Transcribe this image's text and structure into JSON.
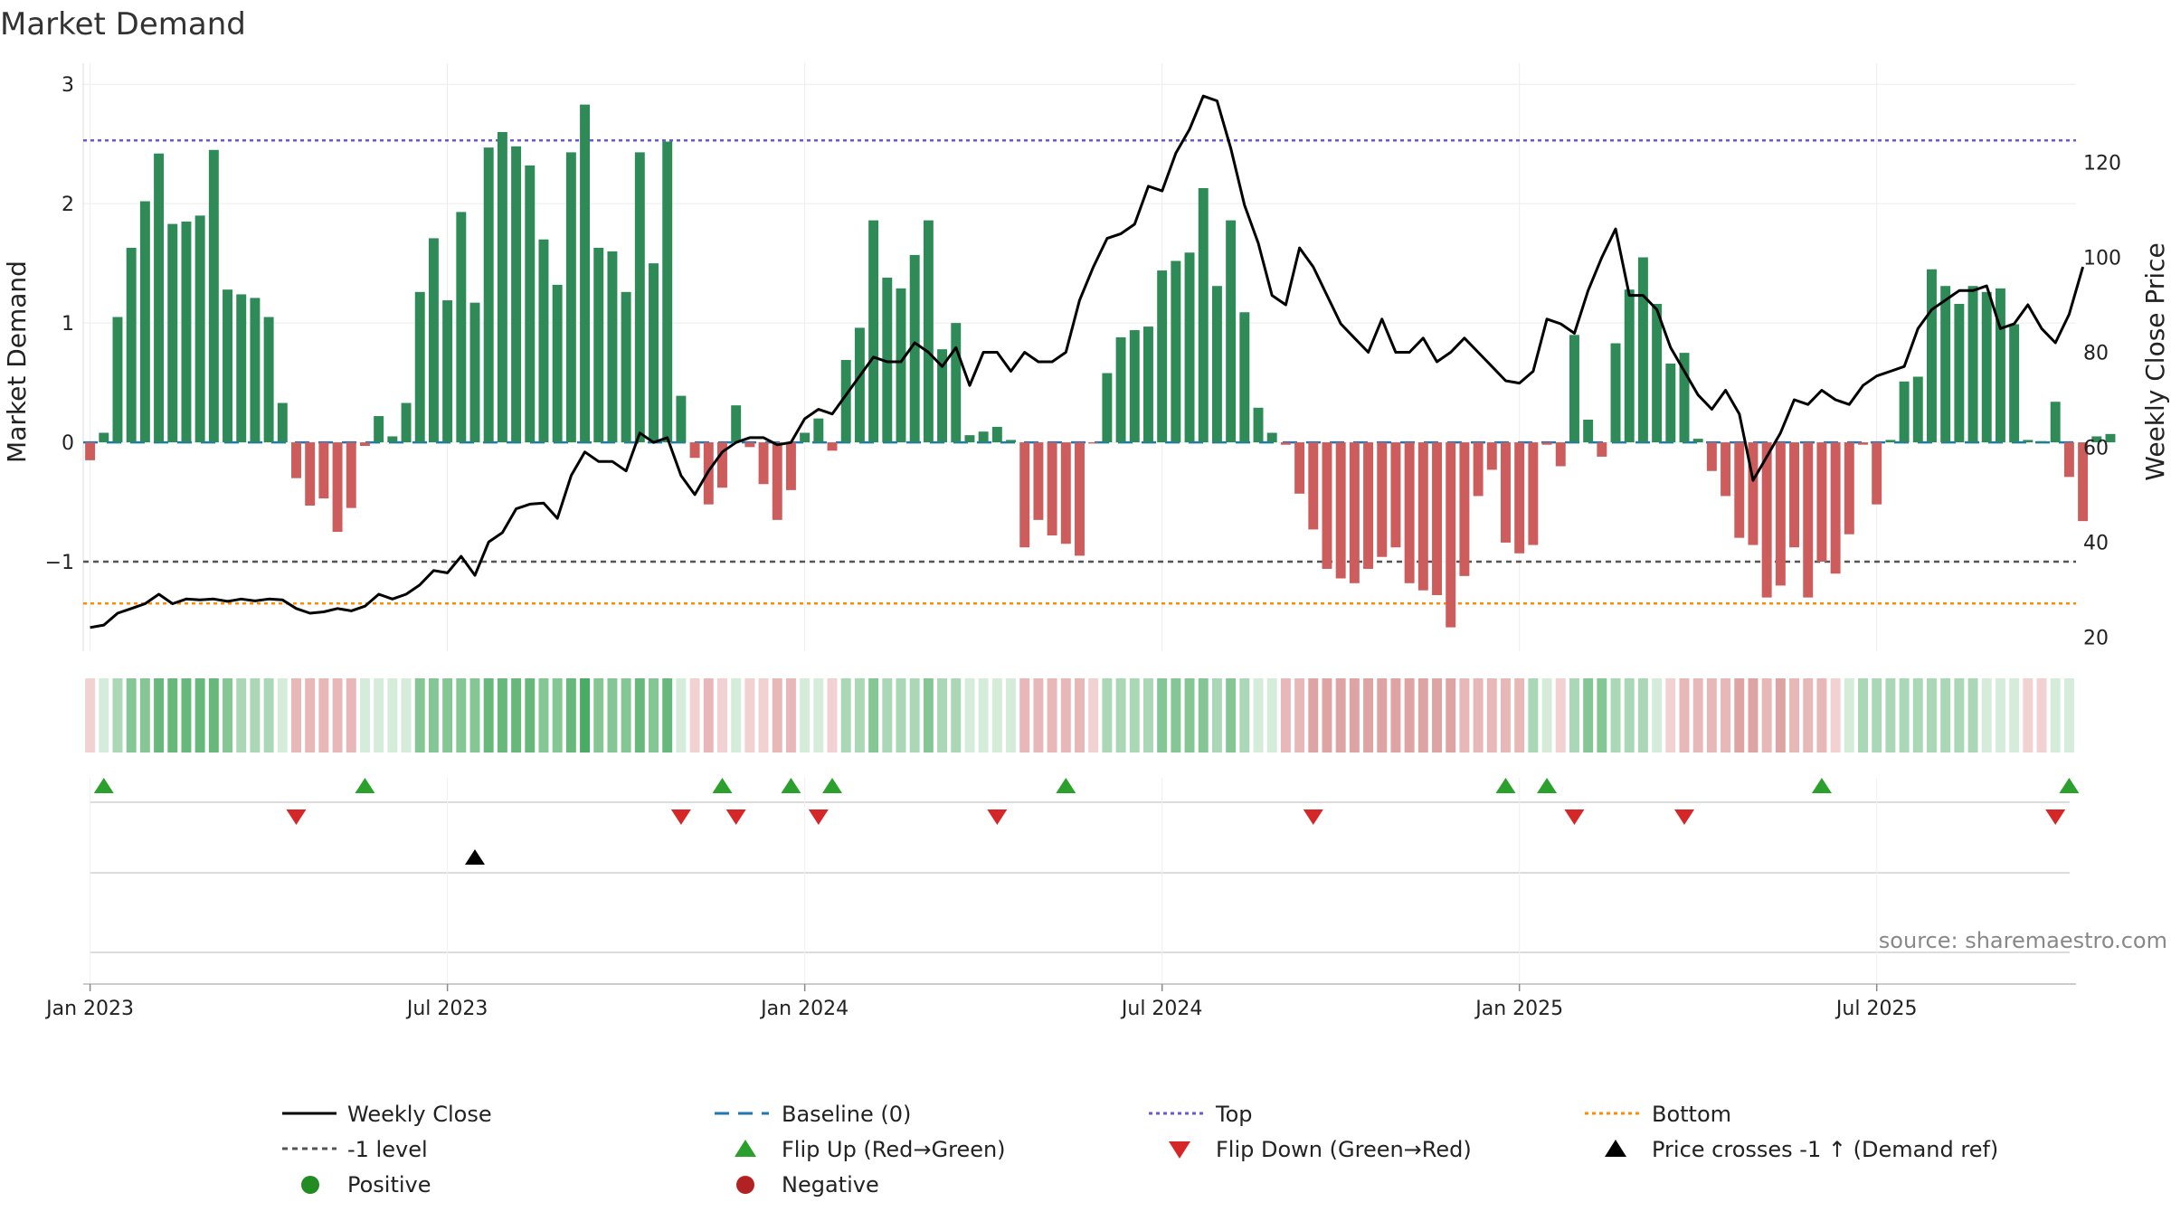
{
  "chart_data": {
    "type": "bar",
    "title": "Market Demand",
    "ylabel_left": "Market Demand",
    "ylabel_right": "Weekly Close Price",
    "source": "source: sharemaestro.com",
    "ylim_left": [
      -1.75,
      3.1
    ],
    "ylim_right": [
      17,
      139
    ],
    "yticks_left": [
      {
        "v": 3,
        "label": "3"
      },
      {
        "v": 2,
        "label": "2"
      },
      {
        "v": 1,
        "label": "1"
      },
      {
        "v": 0,
        "label": "0"
      },
      {
        "v": -1,
        "label": "−1"
      }
    ],
    "yticks_right": [
      {
        "v": 20,
        "label": "20"
      },
      {
        "v": 40,
        "label": "40"
      },
      {
        "v": 60,
        "label": "60"
      },
      {
        "v": 80,
        "label": "80"
      },
      {
        "v": 100,
        "label": "100"
      },
      {
        "v": 120,
        "label": "120"
      }
    ],
    "reference_lines": {
      "top": 2.53,
      "bottom": -1.35,
      "minus_one": -1,
      "baseline": 0
    },
    "x_ticks": [
      {
        "week": 1,
        "label": "Jan 2023"
      },
      {
        "week": 27,
        "label": "Jul 2023"
      },
      {
        "week": 53,
        "label": "Jan 2024"
      },
      {
        "week": 79,
        "label": "Jul 2024"
      },
      {
        "week": 105,
        "label": "Jan 2025"
      },
      {
        "week": 131,
        "label": "Jul 2025"
      }
    ],
    "weeks": 145,
    "demand": [
      -0.15,
      0.08,
      1.05,
      1.63,
      2.02,
      2.42,
      1.83,
      1.85,
      1.9,
      2.45,
      1.28,
      1.24,
      1.21,
      1.05,
      0.33,
      -0.3,
      -0.53,
      -0.47,
      -0.75,
      -0.55,
      -0.03,
      0.22,
      0.05,
      0.33,
      1.26,
      1.71,
      1.19,
      1.93,
      1.17,
      2.47,
      2.6,
      2.48,
      2.32,
      1.7,
      1.32,
      2.43,
      2.83,
      1.63,
      1.6,
      1.26,
      2.43,
      1.5,
      2.52,
      0.39,
      -0.13,
      -0.52,
      -0.38,
      0.31,
      -0.04,
      -0.35,
      -0.65,
      -0.4,
      0.08,
      0.2,
      -0.07,
      0.69,
      0.96,
      1.86,
      1.38,
      1.29,
      1.57,
      1.86,
      0.78,
      1.0,
      0.06,
      0.09,
      0.13,
      0.02,
      -0.88,
      -0.65,
      -0.78,
      -0.85,
      -0.95,
      -0.01,
      0.58,
      0.88,
      0.94,
      0.97,
      1.44,
      1.52,
      1.59,
      2.13,
      1.31,
      1.86,
      1.09,
      0.29,
      0.08,
      -0.02,
      -0.43,
      -0.73,
      -1.06,
      -1.14,
      -1.18,
      -1.06,
      -0.96,
      -0.88,
      -1.18,
      -1.24,
      -1.28,
      -1.55,
      -1.12,
      -0.45,
      -0.23,
      -0.84,
      -0.93,
      -0.86,
      -0.02,
      -0.2,
      0.9,
      0.19,
      -0.12,
      0.83,
      1.28,
      1.55,
      1.16,
      0.66,
      0.75,
      0.03,
      -0.24,
      -0.45,
      -0.8,
      -0.86,
      -1.3,
      -1.2,
      -0.88,
      -1.3,
      -1.0,
      -1.1,
      -0.77,
      -0.02,
      -0.52,
      0.02,
      0.51,
      0.55,
      1.45,
      1.31,
      1.16,
      1.31,
      1.26,
      1.29,
      0.99,
      0.02,
      0.01,
      0.34,
      -0.29,
      -0.66,
      0.05,
      0.07
    ],
    "close": [
      22,
      22.5,
      25,
      26,
      27,
      29,
      27,
      28,
      27.8,
      28,
      27.5,
      28,
      27.6,
      28,
      27.8,
      26,
      25,
      25.3,
      26,
      25.5,
      26.5,
      29,
      28,
      29,
      31,
      34,
      33.5,
      37,
      33,
      40,
      42,
      47,
      48,
      48.2,
      45,
      54,
      59,
      57,
      57,
      55,
      63,
      61,
      62,
      54,
      50,
      55,
      59,
      61,
      62,
      62,
      60.5,
      61,
      66,
      68,
      67,
      71,
      75,
      79,
      78,
      78,
      82,
      80,
      77,
      81,
      73,
      80,
      80,
      76,
      80,
      78,
      78,
      80,
      91,
      98,
      104,
      105,
      107,
      115,
      114,
      122,
      127,
      134,
      133,
      123,
      111,
      103,
      92,
      90,
      102,
      98,
      92,
      86,
      83,
      80,
      87,
      80,
      80,
      83,
      78,
      80,
      83,
      80,
      77,
      74,
      73.5,
      76,
      87,
      86,
      84,
      93,
      100,
      106,
      92,
      92,
      89,
      81,
      76,
      71,
      68,
      72,
      67,
      53,
      58,
      63,
      70,
      69,
      72,
      70,
      69,
      73,
      75,
      76,
      77,
      85,
      89,
      91,
      93,
      93,
      94,
      85,
      86,
      90,
      85,
      82,
      88,
      98
    ],
    "strip": [
      {
        "week": 1,
        "tone": 1,
        "sign": "neg"
      },
      {
        "week": 2,
        "tone": 1,
        "sign": "pos"
      },
      {
        "week": 3,
        "tone": 2,
        "sign": "pos"
      },
      {
        "week": 4,
        "tone": 3,
        "sign": "pos"
      },
      {
        "week": 5,
        "tone": 3,
        "sign": "pos"
      },
      {
        "week": 6,
        "tone": 4,
        "sign": "pos"
      },
      {
        "week": 7,
        "tone": 4,
        "sign": "pos"
      },
      {
        "week": 8,
        "tone": 4,
        "sign": "pos"
      },
      {
        "week": 9,
        "tone": 4,
        "sign": "pos"
      },
      {
        "week": 10,
        "tone": 4,
        "sign": "pos"
      },
      {
        "week": 11,
        "tone": 3,
        "sign": "pos"
      },
      {
        "week": 12,
        "tone": 2,
        "sign": "pos"
      },
      {
        "week": 13,
        "tone": 2,
        "sign": "pos"
      },
      {
        "week": 14,
        "tone": 2,
        "sign": "pos"
      },
      {
        "week": 15,
        "tone": 1,
        "sign": "pos"
      },
      {
        "week": 16,
        "tone": 2,
        "sign": "neg"
      },
      {
        "week": 17,
        "tone": 2,
        "sign": "neg"
      },
      {
        "week": 18,
        "tone": 2,
        "sign": "neg"
      },
      {
        "week": 19,
        "tone": 2,
        "sign": "neg"
      },
      {
        "week": 20,
        "tone": 2,
        "sign": "neg"
      },
      {
        "week": 21,
        "tone": 1,
        "sign": "pos"
      },
      {
        "week": 22,
        "tone": 1,
        "sign": "pos"
      },
      {
        "week": 23,
        "tone": 1,
        "sign": "pos"
      },
      {
        "week": 24,
        "tone": 1,
        "sign": "pos"
      },
      {
        "week": 25,
        "tone": 3,
        "sign": "pos"
      },
      {
        "week": 26,
        "tone": 3,
        "sign": "pos"
      },
      {
        "week": 27,
        "tone": 3,
        "sign": "pos"
      },
      {
        "week": 28,
        "tone": 3,
        "sign": "pos"
      },
      {
        "week": 29,
        "tone": 3,
        "sign": "pos"
      },
      {
        "week": 30,
        "tone": 4,
        "sign": "pos"
      },
      {
        "week": 31,
        "tone": 4,
        "sign": "pos"
      },
      {
        "week": 32,
        "tone": 4,
        "sign": "pos"
      },
      {
        "week": 33,
        "tone": 4,
        "sign": "pos"
      },
      {
        "week": 34,
        "tone": 3,
        "sign": "pos"
      },
      {
        "week": 35,
        "tone": 3,
        "sign": "pos"
      },
      {
        "week": 36,
        "tone": 4,
        "sign": "pos"
      },
      {
        "week": 37,
        "tone": 5,
        "sign": "pos"
      },
      {
        "week": 38,
        "tone": 3,
        "sign": "pos"
      },
      {
        "week": 39,
        "tone": 3,
        "sign": "pos"
      },
      {
        "week": 40,
        "tone": 3,
        "sign": "pos"
      },
      {
        "week": 41,
        "tone": 4,
        "sign": "pos"
      },
      {
        "week": 42,
        "tone": 3,
        "sign": "pos"
      },
      {
        "week": 43,
        "tone": 4,
        "sign": "pos"
      },
      {
        "week": 44,
        "tone": 1,
        "sign": "pos"
      },
      {
        "week": 45,
        "tone": 1,
        "sign": "neg"
      },
      {
        "week": 46,
        "tone": 2,
        "sign": "neg"
      },
      {
        "week": 47,
        "tone": 1,
        "sign": "neg"
      },
      {
        "week": 48,
        "tone": 1,
        "sign": "pos"
      },
      {
        "week": 49,
        "tone": 1,
        "sign": "neg"
      },
      {
        "week": 50,
        "tone": 1,
        "sign": "neg"
      },
      {
        "week": 51,
        "tone": 2,
        "sign": "neg"
      },
      {
        "week": 52,
        "tone": 2,
        "sign": "neg"
      },
      {
        "week": 53,
        "tone": 1,
        "sign": "pos"
      },
      {
        "week": 54,
        "tone": 1,
        "sign": "pos"
      },
      {
        "week": 55,
        "tone": 1,
        "sign": "neg"
      },
      {
        "week": 56,
        "tone": 2,
        "sign": "pos"
      },
      {
        "week": 57,
        "tone": 2,
        "sign": "pos"
      },
      {
        "week": 58,
        "tone": 3,
        "sign": "pos"
      },
      {
        "week": 59,
        "tone": 2,
        "sign": "pos"
      },
      {
        "week": 60,
        "tone": 2,
        "sign": "pos"
      },
      {
        "week": 61,
        "tone": 2,
        "sign": "pos"
      },
      {
        "week": 62,
        "tone": 3,
        "sign": "pos"
      },
      {
        "week": 63,
        "tone": 2,
        "sign": "pos"
      },
      {
        "week": 64,
        "tone": 2,
        "sign": "pos"
      },
      {
        "week": 65,
        "tone": 1,
        "sign": "pos"
      },
      {
        "week": 66,
        "tone": 1,
        "sign": "pos"
      },
      {
        "week": 67,
        "tone": 1,
        "sign": "pos"
      },
      {
        "week": 68,
        "tone": 1,
        "sign": "pos"
      },
      {
        "week": 69,
        "tone": 2,
        "sign": "neg"
      },
      {
        "week": 70,
        "tone": 2,
        "sign": "neg"
      },
      {
        "week": 71,
        "tone": 2,
        "sign": "neg"
      },
      {
        "week": 72,
        "tone": 2,
        "sign": "neg"
      },
      {
        "week": 73,
        "tone": 2,
        "sign": "neg"
      },
      {
        "week": 74,
        "tone": 1,
        "sign": "neg"
      },
      {
        "week": 75,
        "tone": 2,
        "sign": "pos"
      },
      {
        "week": 76,
        "tone": 2,
        "sign": "pos"
      },
      {
        "week": 77,
        "tone": 2,
        "sign": "pos"
      },
      {
        "week": 78,
        "tone": 2,
        "sign": "pos"
      },
      {
        "week": 79,
        "tone": 3,
        "sign": "pos"
      },
      {
        "week": 80,
        "tone": 3,
        "sign": "pos"
      },
      {
        "week": 81,
        "tone": 3,
        "sign": "pos"
      },
      {
        "week": 82,
        "tone": 3,
        "sign": "pos"
      },
      {
        "week": 83,
        "tone": 2,
        "sign": "pos"
      },
      {
        "week": 84,
        "tone": 3,
        "sign": "pos"
      },
      {
        "week": 85,
        "tone": 2,
        "sign": "pos"
      },
      {
        "week": 86,
        "tone": 1,
        "sign": "pos"
      },
      {
        "week": 87,
        "tone": 1,
        "sign": "pos"
      },
      {
        "week": 88,
        "tone": 2,
        "sign": "neg"
      },
      {
        "week": 89,
        "tone": 2,
        "sign": "neg"
      },
      {
        "week": 90,
        "tone": 3,
        "sign": "neg"
      },
      {
        "week": 91,
        "tone": 3,
        "sign": "neg"
      },
      {
        "week": 92,
        "tone": 3,
        "sign": "neg"
      },
      {
        "week": 93,
        "tone": 3,
        "sign": "neg"
      },
      {
        "week": 94,
        "tone": 3,
        "sign": "neg"
      },
      {
        "week": 95,
        "tone": 3,
        "sign": "neg"
      },
      {
        "week": 96,
        "tone": 3,
        "sign": "neg"
      },
      {
        "week": 97,
        "tone": 3,
        "sign": "neg"
      },
      {
        "week": 98,
        "tone": 3,
        "sign": "neg"
      },
      {
        "week": 99,
        "tone": 3,
        "sign": "neg"
      },
      {
        "week": 100,
        "tone": 3,
        "sign": "neg"
      },
      {
        "week": 101,
        "tone": 2,
        "sign": "neg"
      },
      {
        "week": 102,
        "tone": 2,
        "sign": "neg"
      },
      {
        "week": 103,
        "tone": 2,
        "sign": "neg"
      },
      {
        "week": 104,
        "tone": 2,
        "sign": "neg"
      },
      {
        "week": 105,
        "tone": 2,
        "sign": "neg"
      },
      {
        "week": 106,
        "tone": 2,
        "sign": "pos"
      },
      {
        "week": 107,
        "tone": 1,
        "sign": "pos"
      },
      {
        "week": 108,
        "tone": 1,
        "sign": "neg"
      },
      {
        "week": 109,
        "tone": 2,
        "sign": "pos"
      },
      {
        "week": 110,
        "tone": 3,
        "sign": "pos"
      },
      {
        "week": 111,
        "tone": 3,
        "sign": "pos"
      },
      {
        "week": 112,
        "tone": 2,
        "sign": "pos"
      },
      {
        "week": 113,
        "tone": 2,
        "sign": "pos"
      },
      {
        "week": 114,
        "tone": 2,
        "sign": "pos"
      },
      {
        "week": 115,
        "tone": 1,
        "sign": "pos"
      },
      {
        "week": 116,
        "tone": 1,
        "sign": "neg"
      },
      {
        "week": 117,
        "tone": 2,
        "sign": "neg"
      },
      {
        "week": 118,
        "tone": 2,
        "sign": "neg"
      },
      {
        "week": 119,
        "tone": 2,
        "sign": "neg"
      },
      {
        "week": 120,
        "tone": 2,
        "sign": "neg"
      },
      {
        "week": 121,
        "tone": 3,
        "sign": "neg"
      },
      {
        "week": 122,
        "tone": 3,
        "sign": "neg"
      },
      {
        "week": 123,
        "tone": 2,
        "sign": "neg"
      },
      {
        "week": 124,
        "tone": 3,
        "sign": "neg"
      },
      {
        "week": 125,
        "tone": 2,
        "sign": "neg"
      },
      {
        "week": 126,
        "tone": 2,
        "sign": "neg"
      },
      {
        "week": 127,
        "tone": 2,
        "sign": "neg"
      },
      {
        "week": 128,
        "tone": 1,
        "sign": "neg"
      },
      {
        "week": 129,
        "tone": 1,
        "sign": "pos"
      },
      {
        "week": 130,
        "tone": 2,
        "sign": "pos"
      },
      {
        "week": 131,
        "tone": 2,
        "sign": "pos"
      },
      {
        "week": 132,
        "tone": 2,
        "sign": "pos"
      },
      {
        "week": 133,
        "tone": 2,
        "sign": "pos"
      },
      {
        "week": 134,
        "tone": 2,
        "sign": "pos"
      },
      {
        "week": 135,
        "tone": 2,
        "sign": "pos"
      },
      {
        "week": 136,
        "tone": 2,
        "sign": "pos"
      },
      {
        "week": 137,
        "tone": 2,
        "sign": "pos"
      },
      {
        "week": 138,
        "tone": 2,
        "sign": "pos"
      },
      {
        "week": 139,
        "tone": 1,
        "sign": "pos"
      },
      {
        "week": 140,
        "tone": 1,
        "sign": "pos"
      },
      {
        "week": 141,
        "tone": 1,
        "sign": "pos"
      },
      {
        "week": 142,
        "tone": 1,
        "sign": "neg"
      },
      {
        "week": 143,
        "tone": 1,
        "sign": "neg"
      },
      {
        "week": 144,
        "tone": 1,
        "sign": "pos"
      },
      {
        "week": 145,
        "tone": 1,
        "sign": "pos"
      }
    ],
    "flip_up_weeks": [
      2,
      21,
      47,
      52,
      55,
      72,
      104,
      107,
      127,
      145
    ],
    "flip_down_weeks": [
      16,
      44,
      48,
      54,
      67,
      90,
      109,
      117,
      144
    ],
    "price_cross_weeks": [
      29
    ],
    "legend": {
      "weekly_close": "Weekly Close",
      "baseline": "Baseline (0)",
      "top": "Top",
      "bottom": "Bottom",
      "minus_one": "-1 level",
      "flip_up": "Flip Up (Red→Green)",
      "flip_down": "Flip Down (Green→Red)",
      "price_cross": "Price crosses -1 ↑ (Demand ref)",
      "positive": "Positive",
      "negative": "Negative"
    },
    "colors": {
      "bar_pos": "#2e8b57",
      "bar_neg": "#cd5c5c",
      "close": "#000000",
      "baseline": "#1f77b4",
      "top": "#6a5acd",
      "bottom": "#ff8c00",
      "minus_one": "#555555",
      "flip_up": "#2ca02c",
      "flip_down": "#d62728",
      "price_cross": "#000000",
      "positive_dot": "#228b22",
      "negative_dot": "#b22222",
      "strip_pos": [
        "#d4ecd9",
        "#aad7b5",
        "#85c695",
        "#66b87b",
        "#4aab65"
      ],
      "strip_neg": [
        "#f1d1d1",
        "#e8b7b7",
        "#dea3a3"
      ]
    }
  }
}
